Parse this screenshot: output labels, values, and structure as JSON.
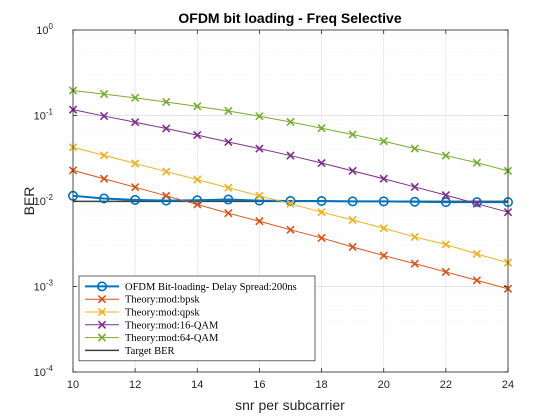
{
  "chart_data": {
    "type": "line",
    "title": "OFDM bit loading -  Freq Selective",
    "xlabel": "snr per subcarrier",
    "ylabel": "BER",
    "xlim": [
      10,
      24
    ],
    "ylim": [
      0.0001,
      1
    ],
    "yscale": "log",
    "grid": true,
    "minor_grid": true,
    "legend_position": "bottom-left",
    "x_ticks": [
      10,
      12,
      14,
      16,
      18,
      20,
      22,
      24
    ],
    "y_ticks": [
      {
        "value": 0.0001,
        "exp": "-4"
      },
      {
        "value": 0.001,
        "exp": "-3"
      },
      {
        "value": 0.01,
        "exp": "-2"
      },
      {
        "value": 0.1,
        "exp": "-1"
      },
      {
        "value": 1,
        "exp": "0"
      }
    ],
    "y_tick_base": "10",
    "x": [
      10,
      11,
      12,
      13,
      14,
      15,
      16,
      17,
      18,
      19,
      20,
      21,
      22,
      23,
      24
    ],
    "series": [
      {
        "name": "OFDM Bit-loading- Delay Spread:200ns",
        "color": "#0072BD",
        "marker": "circle",
        "linewidth": 2,
        "values": [
          0.0115,
          0.0107,
          0.0103,
          0.0101,
          0.0102,
          0.0104,
          0.0101,
          0.01,
          0.01,
          0.0099,
          0.0099,
          0.0098,
          0.0097,
          0.0097,
          0.0097
        ]
      },
      {
        "name": "Theory:mod:bpsk",
        "color": "#D95319",
        "marker": "x",
        "linewidth": 1,
        "values": [
          0.0228,
          0.0182,
          0.0145,
          0.0115,
          0.0091,
          0.0072,
          0.0058,
          0.0046,
          0.0037,
          0.0029,
          0.0023,
          0.00185,
          0.00148,
          0.00118,
          0.00094
        ]
      },
      {
        "name": "Theory:mod:qpsk",
        "color": "#EDB120",
        "marker": "x",
        "linewidth": 1,
        "values": [
          0.0425,
          0.0342,
          0.0275,
          0.0221,
          0.0178,
          0.0143,
          0.0115,
          0.0093,
          0.0074,
          0.006,
          0.0048,
          0.0038,
          0.0031,
          0.0024,
          0.0019
        ]
      },
      {
        "name": "Theory:mod:16-QAM",
        "color": "#7E2F8E",
        "marker": "x",
        "linewidth": 1,
        "values": [
          0.117,
          0.0985,
          0.0835,
          0.0705,
          0.059,
          0.049,
          0.041,
          0.034,
          0.0278,
          0.0225,
          0.0182,
          0.0146,
          0.0117,
          0.0093,
          0.0074
        ]
      },
      {
        "name": "Theory:mod:64-QAM",
        "color": "#77AC30",
        "marker": "x",
        "linewidth": 1,
        "values": [
          0.196,
          0.178,
          0.161,
          0.144,
          0.128,
          0.113,
          0.098,
          0.084,
          0.071,
          0.06,
          0.05,
          0.041,
          0.034,
          0.028,
          0.0225
        ]
      },
      {
        "name": "Target BER",
        "color": "#404040",
        "marker": "none",
        "linewidth": 1.5,
        "values": [
          0.0099,
          0.0099,
          0.0099,
          0.0099,
          0.0099,
          0.0099,
          0.0099,
          0.0099,
          0.0099,
          0.0099,
          0.0099,
          0.0099,
          0.0099,
          0.0099,
          0.0099
        ]
      }
    ]
  }
}
